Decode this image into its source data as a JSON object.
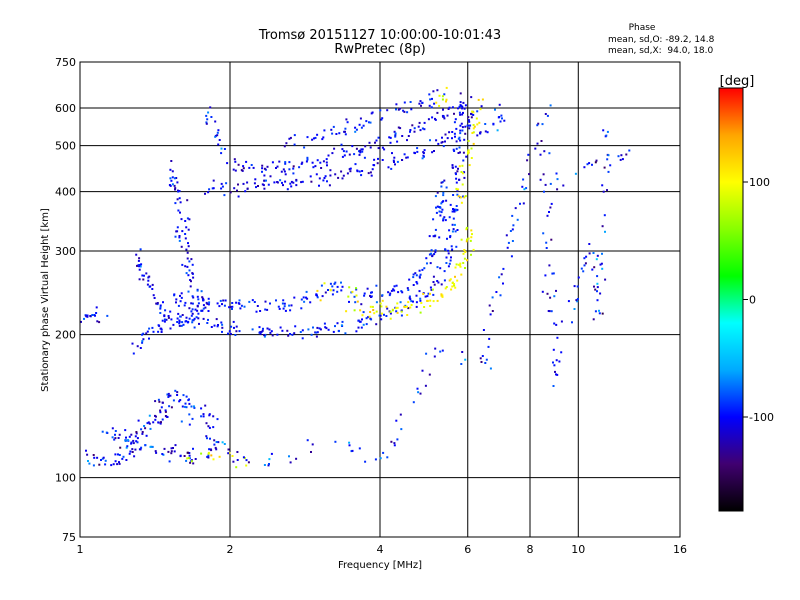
{
  "chart_data": {
    "type": "scatter",
    "title": "Tromsø 20151127 10:00:00-10:01:43",
    "subtitle": "RwPretec (8p)",
    "xlabel": "Frequency [MHz]",
    "ylabel": "Stationary phase Virtual Height [km]",
    "x_scale": "log",
    "y_scale": "log",
    "xlim": [
      1,
      16
    ],
    "ylim": [
      75,
      750
    ],
    "x_ticks": [
      1,
      2,
      4,
      6,
      8,
      10,
      16
    ],
    "x_tick_labels": [
      "1",
      "2",
      "4",
      "6",
      "8",
      "10",
      "16"
    ],
    "y_ticks": [
      75,
      100,
      200,
      300,
      400,
      500,
      600,
      750
    ],
    "y_tick_labels": [
      "75",
      "100",
      "200",
      "300",
      "400",
      "500",
      "600",
      "750"
    ],
    "grid": true,
    "stats": {
      "heading": "Phase",
      "line_o": "mean, sd,O: -89.2, 14.8",
      "line_x": "mean, sd,X:  94.0, 18.0"
    },
    "colorbar": {
      "label": "[deg]",
      "range": [
        -180,
        180
      ],
      "ticks": [
        100,
        0,
        -100
      ],
      "tick_labels": [
        "100",
        "0",
        "-100"
      ],
      "colors": [
        "#000000",
        "#400070",
        "#0000ff",
        "#00aaff",
        "#00ffff",
        "#00ff00",
        "#88ff00",
        "#ffff00",
        "#ffa500",
        "#ff0000"
      ]
    },
    "point_seed": 7,
    "traces": [
      {
        "kind": "O",
        "phase": -100,
        "phase_sd": 18,
        "density": 9,
        "points": [
          [
            1.0,
            215
          ],
          [
            1.05,
            222
          ],
          [
            1.1,
            218
          ]
        ]
      },
      {
        "kind": "O",
        "phase": -100,
        "phase_sd": 20,
        "density": 10,
        "points": [
          [
            1.02,
            110
          ],
          [
            1.1,
            107
          ],
          [
            1.2,
            112
          ],
          [
            1.3,
            118
          ],
          [
            1.4,
            115
          ],
          [
            1.55,
            112
          ],
          [
            1.65,
            110
          ],
          [
            1.8,
            115
          ],
          [
            1.95,
            118
          ]
        ]
      },
      {
        "kind": "O",
        "phase": -105,
        "phase_sd": 18,
        "density": 12,
        "points": [
          [
            1.1,
            125
          ],
          [
            1.3,
            120
          ],
          [
            1.45,
            135
          ],
          [
            1.55,
            150
          ],
          [
            1.7,
            140
          ],
          [
            1.85,
            130
          ]
        ]
      },
      {
        "kind": "O",
        "phase": -100,
        "phase_sd": 15,
        "density": 10,
        "points": [
          [
            1.3,
            300
          ],
          [
            1.38,
            250
          ],
          [
            1.45,
            225
          ],
          [
            1.55,
            215
          ],
          [
            1.65,
            220
          ],
          [
            1.75,
            225
          ],
          [
            1.8,
            230
          ]
        ]
      },
      {
        "kind": "O",
        "phase": -100,
        "phase_sd": 15,
        "density": 10,
        "points": [
          [
            1.5,
            460
          ],
          [
            1.55,
            420
          ],
          [
            1.6,
            360
          ],
          [
            1.62,
            300
          ],
          [
            1.68,
            260
          ],
          [
            1.75,
            240
          ]
        ]
      },
      {
        "kind": "O",
        "phase": -100,
        "phase_sd": 12,
        "density": 10,
        "points": [
          [
            1.3,
            190
          ],
          [
            1.35,
            200
          ],
          [
            1.45,
            210
          ],
          [
            1.6,
            212
          ],
          [
            1.8,
            215
          ],
          [
            2.0,
            205
          ],
          [
            2.2,
            202
          ],
          [
            2.4,
            202
          ],
          [
            2.7,
            203
          ],
          [
            3.0,
            204
          ],
          [
            3.3,
            207
          ],
          [
            3.7,
            212
          ],
          [
            4.0,
            218
          ],
          [
            4.4,
            226
          ],
          [
            4.8,
            238
          ],
          [
            5.2,
            255
          ],
          [
            5.5,
            290
          ],
          [
            5.6,
            340
          ],
          [
            5.7,
            400
          ],
          [
            5.75,
            460
          ],
          [
            5.8,
            510
          ],
          [
            5.85,
            560
          ],
          [
            5.9,
            610
          ]
        ]
      },
      {
        "kind": "O",
        "phase": -95,
        "phase_sd": 12,
        "density": 10,
        "points": [
          [
            1.5,
            240
          ],
          [
            1.7,
            235
          ],
          [
            2.0,
            232
          ],
          [
            2.4,
            228
          ],
          [
            2.8,
            235
          ],
          [
            3.2,
            250
          ],
          [
            3.6,
            240
          ],
          [
            4.0,
            245
          ],
          [
            4.5,
            250
          ],
          [
            5.0,
            280
          ],
          [
            5.2,
            330
          ],
          [
            5.3,
            380
          ],
          [
            5.35,
            430
          ]
        ]
      },
      {
        "kind": "O",
        "phase": -105,
        "phase_sd": 12,
        "density": 10,
        "points": [
          [
            1.8,
            410
          ],
          [
            2.0,
            405
          ],
          [
            2.3,
            415
          ],
          [
            2.6,
            418
          ],
          [
            3.0,
            425
          ],
          [
            3.5,
            440
          ],
          [
            4.0,
            455
          ],
          [
            4.5,
            470
          ],
          [
            5.0,
            490
          ],
          [
            5.5,
            520
          ],
          [
            6.0,
            560
          ],
          [
            6.4,
            610
          ]
        ]
      },
      {
        "kind": "O",
        "phase": -105,
        "phase_sd": 12,
        "density": 10,
        "points": [
          [
            2.0,
            455
          ],
          [
            2.4,
            450
          ],
          [
            2.8,
            455
          ],
          [
            3.2,
            470
          ],
          [
            3.6,
            490
          ],
          [
            4.0,
            505
          ],
          [
            4.5,
            530
          ],
          [
            5.0,
            560
          ],
          [
            5.5,
            590
          ],
          [
            6.0,
            630
          ]
        ]
      },
      {
        "kind": "O",
        "phase": -100,
        "phase_sd": 12,
        "density": 8,
        "points": [
          [
            2.6,
            510
          ],
          [
            3.0,
            520
          ],
          [
            3.4,
            540
          ],
          [
            3.8,
            560
          ],
          [
            4.2,
            580
          ],
          [
            4.6,
            600
          ],
          [
            5.0,
            620
          ],
          [
            5.4,
            640
          ]
        ]
      },
      {
        "kind": "O",
        "phase": -95,
        "phase_sd": 15,
        "density": 6,
        "points": [
          [
            1.8,
            600
          ],
          [
            1.85,
            560
          ],
          [
            1.9,
            520
          ],
          [
            1.95,
            480
          ]
        ]
      },
      {
        "kind": "O",
        "phase": -95,
        "phase_sd": 15,
        "density": 6,
        "points": [
          [
            6.3,
            520
          ],
          [
            6.6,
            540
          ],
          [
            7.0,
            560
          ],
          [
            7.0,
            600
          ]
        ]
      },
      {
        "kind": "X",
        "phase": 100,
        "phase_sd": 15,
        "density": 10,
        "points": [
          [
            3.5,
            230
          ],
          [
            4.0,
            225
          ],
          [
            4.4,
            228
          ],
          [
            4.8,
            232
          ],
          [
            5.2,
            240
          ],
          [
            5.6,
            255
          ],
          [
            5.8,
            275
          ],
          [
            6.0,
            300
          ],
          [
            6.05,
            340
          ]
        ]
      },
      {
        "kind": "X",
        "phase": 100,
        "phase_sd": 15,
        "density": 6,
        "points": [
          [
            5.8,
            380
          ],
          [
            5.9,
            430
          ],
          [
            6.0,
            480
          ],
          [
            6.1,
            520
          ],
          [
            6.2,
            560
          ],
          [
            6.4,
            620
          ]
        ]
      },
      {
        "kind": "X",
        "phase": 90,
        "phase_sd": 18,
        "density": 5,
        "points": [
          [
            3.0,
            245
          ],
          [
            3.3,
            250
          ],
          [
            3.6,
            240
          ]
        ]
      },
      {
        "kind": "X",
        "phase": 95,
        "phase_sd": 20,
        "density": 4,
        "points": [
          [
            1.6,
            108
          ],
          [
            1.8,
            112
          ],
          [
            2.0,
            110
          ],
          [
            2.2,
            110
          ]
        ]
      },
      {
        "kind": "X",
        "phase": 90,
        "phase_sd": 18,
        "density": 4,
        "points": [
          [
            5.2,
            590
          ],
          [
            5.3,
            620
          ],
          [
            5.4,
            640
          ]
        ]
      },
      {
        "kind": "O",
        "phase": -100,
        "phase_sd": 20,
        "density": 3,
        "points": [
          [
            1.2,
            100
          ],
          [
            1.4,
            150
          ],
          [
            2.1,
            110
          ],
          [
            2.3,
            105
          ],
          [
            3.1,
            120
          ],
          [
            4.1,
            110
          ],
          [
            5.2,
            185
          ],
          [
            6.5,
            170
          ],
          [
            6.6,
            210
          ],
          [
            8.5,
            600
          ],
          [
            8.7,
            300
          ],
          [
            8.9,
            160
          ],
          [
            10.5,
            310
          ],
          [
            11.0,
            215
          ],
          [
            11.4,
            545
          ],
          [
            12.5,
            470
          ],
          [
            9.0,
            440
          ],
          [
            9.2,
            410
          ]
        ]
      }
    ]
  }
}
